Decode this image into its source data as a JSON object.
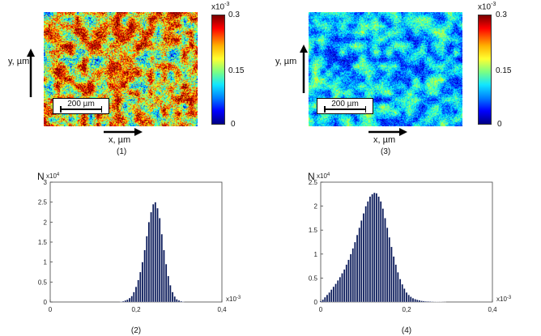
{
  "maps": [
    {
      "id": "map1",
      "x_label": "x, µm",
      "y_label": "y, µm",
      "scale_bar": "200 µm",
      "colorbar": {
        "exponent": "x10",
        "power": "-3",
        "ticks": [
          "0.3",
          "0.15",
          "0"
        ]
      },
      "panel_label": "(1)"
    },
    {
      "id": "map3",
      "x_label": "x, µm",
      "y_label": "y, µm",
      "scale_bar": "200 µm",
      "colorbar": {
        "exponent": "x10",
        "power": "-3",
        "ticks": [
          "0.3",
          "0.15",
          "0"
        ]
      },
      "panel_label": "(3)"
    }
  ],
  "chart_data": [
    {
      "type": "bar",
      "panel_label": "(2)",
      "ylabel": "N",
      "y_multiplier": "x10",
      "y_multiplier_power": "4",
      "ylim": [
        0,
        3
      ],
      "yticks": [
        "0",
        "0.5",
        "1",
        "1.5",
        "2",
        "2.5",
        "3"
      ],
      "xlim": [
        0,
        0.4
      ],
      "xticks": [
        "0",
        "0,2",
        "0,4"
      ],
      "x_multiplier": "x10",
      "x_multiplier_power": "-3",
      "bar_color": "#0a1a5a",
      "x": [
        0.165,
        0.17,
        0.175,
        0.18,
        0.185,
        0.19,
        0.195,
        0.2,
        0.205,
        0.21,
        0.215,
        0.22,
        0.225,
        0.23,
        0.235,
        0.24,
        0.245,
        0.25,
        0.255,
        0.26,
        0.265,
        0.27,
        0.275,
        0.28,
        0.285,
        0.29,
        0.295,
        0.3,
        0.305,
        0.31
      ],
      "values": [
        0.01,
        0.02,
        0.04,
        0.06,
        0.1,
        0.15,
        0.25,
        0.38,
        0.55,
        0.75,
        1.0,
        1.3,
        1.65,
        2.0,
        2.25,
        2.45,
        2.5,
        2.35,
        2.1,
        1.7,
        1.3,
        0.95,
        0.65,
        0.42,
        0.25,
        0.14,
        0.07,
        0.04,
        0.02,
        0.01
      ]
    },
    {
      "type": "bar",
      "panel_label": "(4)",
      "ylabel": "N",
      "y_multiplier": "x10",
      "y_multiplier_power": "4",
      "ylim": [
        0,
        2.5
      ],
      "yticks": [
        "0",
        "0.5",
        "1",
        "1.5",
        "2",
        "2.5"
      ],
      "xlim": [
        0,
        0.4
      ],
      "xticks": [
        "0",
        "0,2",
        "0,4"
      ],
      "x_multiplier": "x10",
      "x_multiplier_power": "-3",
      "bar_color": "#0a1a5a",
      "x": [
        0.0,
        0.005,
        0.01,
        0.015,
        0.02,
        0.025,
        0.03,
        0.035,
        0.04,
        0.045,
        0.05,
        0.055,
        0.06,
        0.065,
        0.07,
        0.075,
        0.08,
        0.085,
        0.09,
        0.095,
        0.1,
        0.105,
        0.11,
        0.115,
        0.12,
        0.125,
        0.13,
        0.135,
        0.14,
        0.145,
        0.15,
        0.155,
        0.16,
        0.165,
        0.17,
        0.175,
        0.18,
        0.185,
        0.19,
        0.195,
        0.2,
        0.205,
        0.21,
        0.215,
        0.22,
        0.225,
        0.23,
        0.235,
        0.24,
        0.245,
        0.25,
        0.255,
        0.26,
        0.265,
        0.27,
        0.275,
        0.28,
        0.285,
        0.29
      ],
      "values": [
        0.02,
        0.05,
        0.1,
        0.15,
        0.2,
        0.26,
        0.32,
        0.38,
        0.45,
        0.52,
        0.6,
        0.68,
        0.78,
        0.88,
        1.0,
        1.12,
        1.25,
        1.4,
        1.55,
        1.7,
        1.85,
        2.0,
        2.1,
        2.2,
        2.25,
        2.28,
        2.27,
        2.2,
        2.1,
        1.95,
        1.75,
        1.55,
        1.35,
        1.15,
        0.95,
        0.78,
        0.62,
        0.48,
        0.37,
        0.28,
        0.2,
        0.15,
        0.11,
        0.08,
        0.06,
        0.045,
        0.035,
        0.025,
        0.02,
        0.015,
        0.012,
        0.01,
        0.008,
        0.006,
        0.005,
        0.004,
        0.003,
        0.002,
        0.001
      ]
    }
  ]
}
